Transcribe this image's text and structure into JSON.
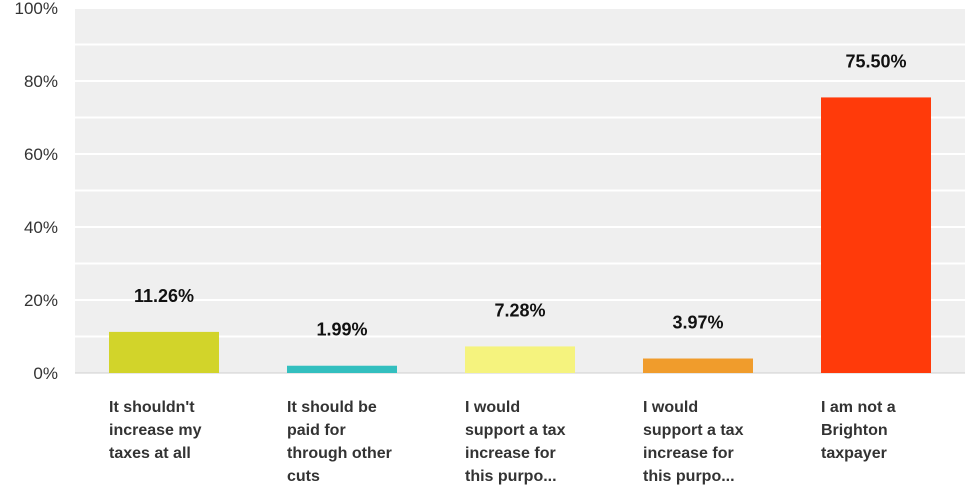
{
  "chart_data": {
    "type": "bar",
    "categories": [
      [
        "It shouldn't",
        "increase my",
        "taxes at all"
      ],
      [
        "It should be",
        "paid for",
        "through other",
        "cuts"
      ],
      [
        "I would",
        "support a tax",
        "increase for",
        "this purpo..."
      ],
      [
        "I would",
        "support a tax",
        "increase for",
        "this purpo..."
      ],
      [
        "I am not a",
        "Brighton",
        "taxpayer"
      ]
    ],
    "values": [
      11.26,
      1.99,
      7.28,
      3.97,
      75.5
    ],
    "value_labels": [
      "11.26%",
      "1.99%",
      "7.28%",
      "3.97%",
      "75.50%"
    ],
    "colors": [
      "#d2d42a",
      "#33bfbf",
      "#f5f37e",
      "#f09c2c",
      "#ff3a0a"
    ],
    "ylim": [
      0,
      100
    ],
    "yticks": [
      0,
      20,
      40,
      60,
      80,
      100
    ],
    "ytick_labels": [
      "0%",
      "20%",
      "40%",
      "60%",
      "80%",
      "100%"
    ],
    "grid": true,
    "plot_background": "#efefef"
  }
}
